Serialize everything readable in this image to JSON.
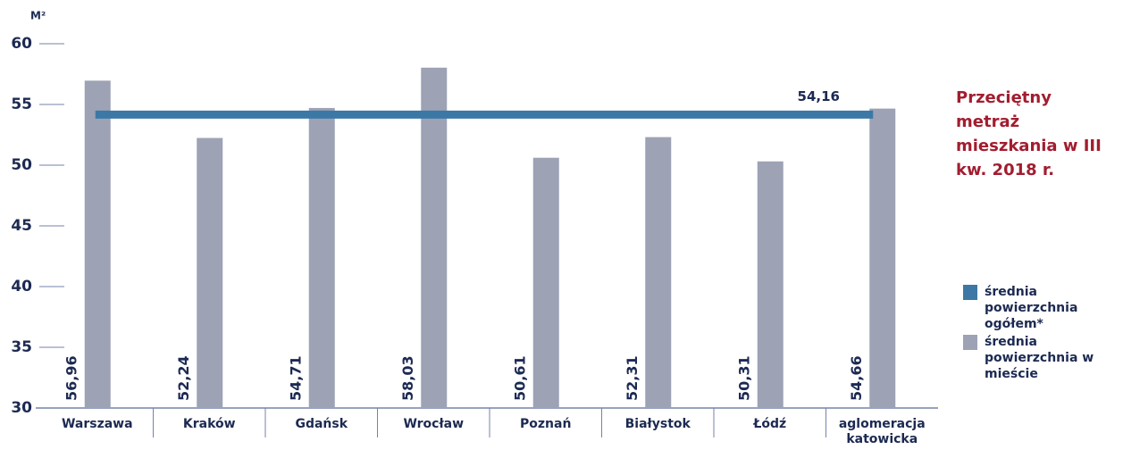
{
  "chart_data": {
    "type": "bar",
    "y_unit": "M²",
    "annotation": "Przeciętny metraż mieszkania w III kw. 2018 r.",
    "categories": [
      "Warszawa",
      "Kraków",
      "Gdańsk",
      "Wrocław",
      "Poznań",
      "Białystok",
      "Łódź",
      "aglomeracja katowicka"
    ],
    "reference_line": {
      "name": "średnia powierzchnia ogółem*",
      "color": "#3b78a6",
      "value": 54.16,
      "value_label": "54,16"
    },
    "series": [
      {
        "name": "średnia powierzchnia w mieście",
        "color": "#9da2b5",
        "values": [
          56.96,
          52.24,
          54.71,
          58.03,
          50.61,
          52.31,
          50.31,
          54.66
        ],
        "value_labels": [
          "56,96",
          "52,24",
          "54,71",
          "58,03",
          "50,61",
          "52,31",
          "50,31",
          "54,66"
        ]
      }
    ],
    "ylim": [
      30,
      60
    ],
    "yticks": [
      30,
      35,
      40,
      45,
      50,
      55,
      60
    ]
  }
}
